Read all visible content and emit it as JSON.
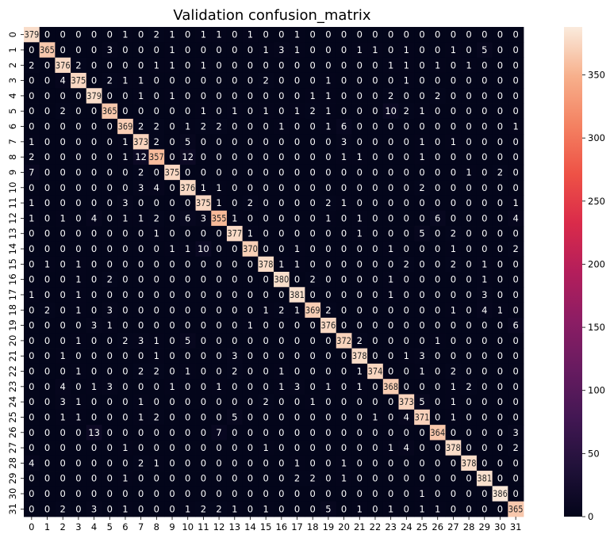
{
  "chart_data": {
    "type": "heatmap",
    "title": "Validation confusion_matrix",
    "xlabel": "",
    "ylabel": "",
    "x_ticks": [
      "0",
      "1",
      "2",
      "3",
      "4",
      "5",
      "6",
      "7",
      "8",
      "9",
      "10",
      "11",
      "12",
      "13",
      "14",
      "15",
      "16",
      "17",
      "18",
      "19",
      "20",
      "21",
      "22",
      "23",
      "24",
      "25",
      "26",
      "27",
      "28",
      "29",
      "30",
      "31"
    ],
    "y_ticks": [
      "0",
      "1",
      "2",
      "3",
      "4",
      "5",
      "6",
      "7",
      "8",
      "9",
      "10",
      "11",
      "12",
      "13",
      "14",
      "15",
      "16",
      "17",
      "18",
      "19",
      "20",
      "21",
      "22",
      "23",
      "24",
      "25",
      "26",
      "27",
      "28",
      "29",
      "30",
      "31"
    ],
    "colorbar": {
      "min": 0,
      "max": 388,
      "ticks": [
        "0",
        "50",
        "100",
        "150",
        "200",
        "250",
        "300",
        "350"
      ],
      "tick_values": [
        0,
        50,
        100,
        150,
        200,
        250,
        300,
        350
      ],
      "colormap": "rocket"
    },
    "matrix": [
      [
        379,
        0,
        0,
        0,
        0,
        0,
        1,
        0,
        2,
        1,
        0,
        1,
        1,
        0,
        1,
        0,
        0,
        1,
        0,
        0,
        0,
        0,
        0,
        0,
        0,
        0,
        0,
        0,
        0,
        0,
        0,
        0
      ],
      [
        0,
        365,
        0,
        0,
        0,
        3,
        0,
        0,
        0,
        1,
        0,
        0,
        0,
        0,
        0,
        1,
        3,
        1,
        0,
        0,
        0,
        1,
        1,
        0,
        1,
        0,
        0,
        1,
        0,
        5,
        0,
        0
      ],
      [
        2,
        0,
        376,
        2,
        0,
        0,
        0,
        0,
        1,
        1,
        0,
        1,
        0,
        0,
        0,
        0,
        0,
        0,
        0,
        0,
        0,
        0,
        0,
        1,
        1,
        0,
        1,
        0,
        1,
        0,
        0,
        0
      ],
      [
        0,
        0,
        4,
        375,
        0,
        2,
        1,
        1,
        0,
        0,
        0,
        0,
        0,
        0,
        0,
        2,
        0,
        0,
        0,
        1,
        0,
        0,
        0,
        0,
        1,
        0,
        0,
        0,
        0,
        0,
        0,
        0
      ],
      [
        0,
        0,
        0,
        0,
        379,
        0,
        0,
        1,
        0,
        1,
        0,
        0,
        0,
        0,
        0,
        0,
        0,
        0,
        1,
        1,
        0,
        0,
        0,
        2,
        0,
        0,
        2,
        0,
        0,
        0,
        0,
        0
      ],
      [
        0,
        0,
        2,
        0,
        0,
        365,
        0,
        0,
        0,
        0,
        0,
        1,
        0,
        1,
        0,
        1,
        0,
        1,
        2,
        1,
        0,
        0,
        0,
        10,
        2,
        1,
        0,
        0,
        0,
        0,
        0,
        0
      ],
      [
        0,
        0,
        0,
        0,
        0,
        0,
        369,
        2,
        2,
        0,
        1,
        2,
        2,
        0,
        0,
        0,
        1,
        0,
        0,
        1,
        6,
        0,
        0,
        0,
        0,
        0,
        0,
        0,
        0,
        0,
        0,
        1
      ],
      [
        1,
        0,
        0,
        0,
        0,
        0,
        1,
        373,
        2,
        0,
        5,
        0,
        0,
        0,
        0,
        0,
        0,
        0,
        0,
        0,
        3,
        0,
        0,
        0,
        0,
        1,
        0,
        1,
        0,
        0,
        0,
        0
      ],
      [
        2,
        0,
        0,
        0,
        0,
        0,
        1,
        12,
        357,
        0,
        12,
        0,
        0,
        0,
        0,
        0,
        0,
        0,
        0,
        0,
        1,
        1,
        0,
        0,
        0,
        1,
        0,
        0,
        0,
        0,
        0,
        0
      ],
      [
        7,
        0,
        0,
        0,
        0,
        0,
        0,
        2,
        0,
        375,
        0,
        0,
        0,
        0,
        0,
        0,
        0,
        0,
        0,
        0,
        0,
        0,
        0,
        0,
        0,
        0,
        0,
        0,
        1,
        0,
        2,
        0
      ],
      [
        0,
        0,
        0,
        0,
        0,
        0,
        0,
        3,
        4,
        0,
        376,
        1,
        1,
        0,
        0,
        0,
        0,
        0,
        0,
        0,
        0,
        0,
        0,
        0,
        0,
        2,
        0,
        0,
        0,
        0,
        0,
        0
      ],
      [
        1,
        0,
        0,
        0,
        0,
        0,
        3,
        0,
        0,
        0,
        0,
        375,
        1,
        0,
        2,
        0,
        0,
        0,
        0,
        2,
        1,
        0,
        0,
        0,
        0,
        0,
        0,
        0,
        0,
        0,
        0,
        1
      ],
      [
        1,
        0,
        1,
        0,
        4,
        0,
        1,
        1,
        2,
        0,
        6,
        3,
        355,
        1,
        0,
        0,
        0,
        0,
        0,
        1,
        0,
        1,
        0,
        0,
        0,
        0,
        6,
        0,
        0,
        0,
        0,
        4
      ],
      [
        0,
        0,
        0,
        0,
        0,
        0,
        0,
        0,
        1,
        0,
        0,
        0,
        0,
        377,
        1,
        0,
        0,
        0,
        0,
        0,
        0,
        1,
        0,
        0,
        0,
        5,
        0,
        2,
        0,
        0,
        0,
        0
      ],
      [
        0,
        0,
        0,
        0,
        0,
        0,
        0,
        0,
        0,
        1,
        1,
        10,
        0,
        0,
        370,
        0,
        0,
        1,
        0,
        0,
        0,
        0,
        0,
        1,
        0,
        0,
        0,
        1,
        0,
        0,
        0,
        2
      ],
      [
        0,
        1,
        0,
        1,
        0,
        0,
        0,
        0,
        0,
        0,
        0,
        0,
        0,
        0,
        0,
        378,
        1,
        1,
        0,
        0,
        0,
        0,
        0,
        0,
        2,
        0,
        0,
        2,
        0,
        1,
        0,
        0
      ],
      [
        0,
        0,
        0,
        1,
        0,
        2,
        0,
        0,
        0,
        0,
        0,
        0,
        0,
        0,
        0,
        0,
        380,
        0,
        2,
        0,
        0,
        0,
        0,
        1,
        0,
        0,
        0,
        0,
        0,
        1,
        0,
        0
      ],
      [
        1,
        0,
        0,
        1,
        0,
        0,
        0,
        0,
        0,
        0,
        0,
        0,
        0,
        0,
        0,
        0,
        0,
        381,
        0,
        0,
        0,
        0,
        0,
        1,
        0,
        0,
        0,
        0,
        0,
        3,
        0,
        0
      ],
      [
        0,
        2,
        0,
        1,
        0,
        3,
        0,
        0,
        0,
        0,
        0,
        0,
        0,
        0,
        0,
        1,
        2,
        1,
        369,
        2,
        0,
        0,
        0,
        0,
        0,
        0,
        0,
        1,
        0,
        4,
        1,
        0
      ],
      [
        0,
        0,
        0,
        0,
        3,
        1,
        0,
        0,
        0,
        0,
        0,
        0,
        0,
        0,
        1,
        0,
        0,
        0,
        0,
        376,
        0,
        0,
        0,
        0,
        0,
        0,
        0,
        0,
        0,
        0,
        0,
        6
      ],
      [
        0,
        0,
        0,
        1,
        0,
        0,
        2,
        3,
        1,
        0,
        5,
        0,
        0,
        0,
        0,
        0,
        0,
        0,
        0,
        0,
        372,
        2,
        0,
        0,
        0,
        0,
        1,
        0,
        0,
        0,
        0,
        0
      ],
      [
        0,
        0,
        1,
        0,
        0,
        0,
        0,
        0,
        1,
        0,
        0,
        0,
        0,
        3,
        0,
        0,
        0,
        0,
        0,
        0,
        0,
        378,
        0,
        0,
        1,
        3,
        0,
        0,
        0,
        0,
        0,
        0
      ],
      [
        0,
        0,
        0,
        1,
        0,
        0,
        0,
        2,
        2,
        0,
        1,
        0,
        0,
        2,
        0,
        0,
        1,
        0,
        0,
        0,
        0,
        1,
        374,
        0,
        0,
        1,
        0,
        2,
        0,
        0,
        0,
        0
      ],
      [
        0,
        0,
        4,
        0,
        1,
        3,
        0,
        0,
        0,
        1,
        0,
        0,
        1,
        0,
        0,
        0,
        1,
        3,
        0,
        1,
        0,
        1,
        0,
        368,
        0,
        0,
        0,
        1,
        2,
        0,
        0,
        0
      ],
      [
        0,
        0,
        3,
        1,
        0,
        0,
        0,
        1,
        0,
        0,
        0,
        0,
        0,
        0,
        0,
        2,
        0,
        0,
        1,
        0,
        0,
        0,
        0,
        0,
        373,
        5,
        0,
        1,
        0,
        0,
        0,
        0
      ],
      [
        0,
        0,
        1,
        1,
        0,
        0,
        0,
        1,
        2,
        0,
        0,
        0,
        0,
        5,
        0,
        0,
        0,
        0,
        0,
        0,
        0,
        0,
        1,
        0,
        4,
        371,
        0,
        1,
        0,
        0,
        0,
        0
      ],
      [
        0,
        0,
        0,
        0,
        13,
        0,
        0,
        0,
        0,
        0,
        0,
        0,
        7,
        0,
        0,
        0,
        0,
        0,
        0,
        0,
        0,
        0,
        0,
        0,
        0,
        0,
        364,
        0,
        0,
        0,
        0,
        3
      ],
      [
        0,
        0,
        0,
        0,
        0,
        0,
        1,
        0,
        0,
        0,
        0,
        0,
        0,
        0,
        0,
        1,
        0,
        0,
        0,
        0,
        0,
        0,
        0,
        1,
        4,
        0,
        0,
        378,
        0,
        0,
        0,
        2
      ],
      [
        4,
        0,
        0,
        0,
        0,
        0,
        0,
        2,
        1,
        0,
        0,
        0,
        0,
        0,
        0,
        0,
        0,
        1,
        0,
        0,
        1,
        0,
        0,
        0,
        0,
        0,
        0,
        0,
        378,
        0,
        0,
        0
      ],
      [
        0,
        0,
        0,
        0,
        0,
        0,
        1,
        0,
        0,
        0,
        0,
        0,
        0,
        0,
        0,
        0,
        0,
        2,
        2,
        0,
        1,
        0,
        0,
        0,
        0,
        0,
        0,
        0,
        0,
        381,
        0,
        0
      ],
      [
        0,
        0,
        0,
        0,
        0,
        0,
        0,
        0,
        0,
        0,
        0,
        0,
        0,
        0,
        0,
        0,
        0,
        0,
        0,
        0,
        0,
        0,
        0,
        0,
        0,
        1,
        0,
        0,
        0,
        0,
        386,
        0
      ],
      [
        0,
        0,
        2,
        0,
        3,
        0,
        1,
        0,
        0,
        0,
        1,
        2,
        2,
        1,
        0,
        1,
        0,
        0,
        0,
        5,
        0,
        1,
        0,
        1,
        0,
        1,
        1,
        0,
        0,
        0,
        0,
        365
      ]
    ]
  }
}
